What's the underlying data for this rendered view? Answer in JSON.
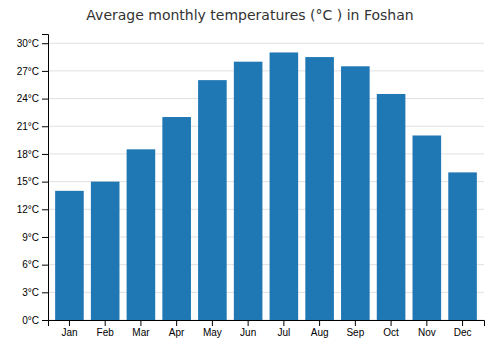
{
  "chart_data": {
    "type": "bar",
    "title": "Average monthly temperatures (°C ) in Foshan",
    "categories": [
      "Jan",
      "Feb",
      "Mar",
      "Apr",
      "May",
      "Jun",
      "Jul",
      "Aug",
      "Sep",
      "Oct",
      "Nov",
      "Dec"
    ],
    "values": [
      14,
      15,
      18.5,
      22,
      26,
      28,
      29,
      28.5,
      27.5,
      24.5,
      20,
      16
    ],
    "ylim": [
      0,
      31
    ],
    "yticks": [
      {
        "value": 0,
        "label": "0°C"
      },
      {
        "value": 3,
        "label": "3°C"
      },
      {
        "value": 6,
        "label": "6°C"
      },
      {
        "value": 9,
        "label": "9°C"
      },
      {
        "value": 12,
        "label": "12°C"
      },
      {
        "value": 15,
        "label": "15°C"
      },
      {
        "value": 18,
        "label": "18°C"
      },
      {
        "value": 21,
        "label": "21°C"
      },
      {
        "value": 24,
        "label": "24°C"
      },
      {
        "value": 27,
        "label": "27°C"
      },
      {
        "value": 30,
        "label": "30°C"
      }
    ],
    "grid": true
  }
}
